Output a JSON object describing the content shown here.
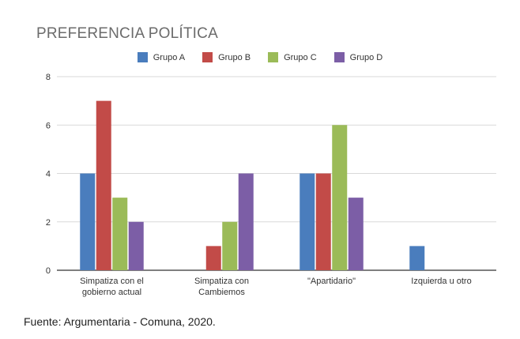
{
  "chart_data": {
    "type": "bar",
    "title": "PREFERENCIA POLÍTICA",
    "categories": [
      [
        "Simpatiza con el",
        "gobierno actual"
      ],
      [
        "Simpatiza con",
        "Cambiemos"
      ],
      [
        "\"Apartidario\""
      ],
      [
        "Izquierda u otro"
      ]
    ],
    "series": [
      {
        "name": "Grupo A",
        "color": "#4a7dbd",
        "values": [
          4,
          0,
          4,
          1
        ]
      },
      {
        "name": "Grupo B",
        "color": "#c24b48",
        "values": [
          7,
          1,
          4,
          0
        ]
      },
      {
        "name": "Grupo C",
        "color": "#9bbb58",
        "values": [
          3,
          2,
          6,
          0
        ]
      },
      {
        "name": "Grupo D",
        "color": "#7c5ea6",
        "values": [
          2,
          4,
          3,
          0
        ]
      }
    ],
    "ylim": [
      0,
      8
    ],
    "yticks": [
      0,
      2,
      4,
      6,
      8
    ],
    "grid": true,
    "legend": "top"
  },
  "source": "Fuente: Argumentaria - Comuna, 2020."
}
